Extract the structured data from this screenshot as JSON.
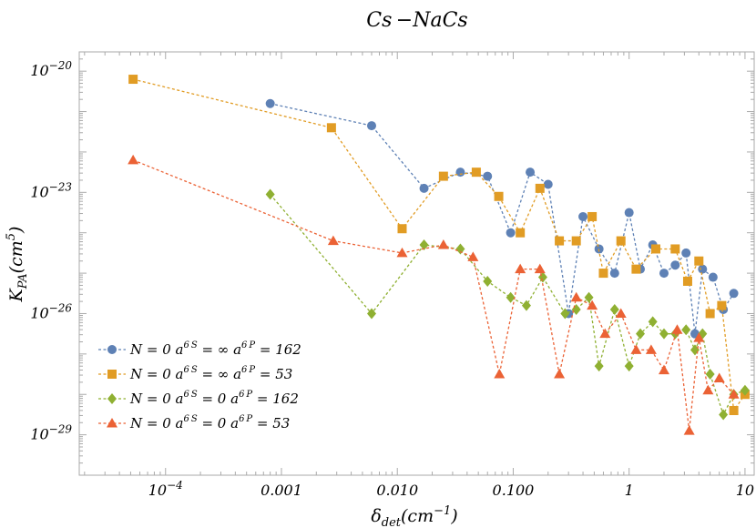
{
  "chart_data": {
    "type": "scatter",
    "title": "Cs −NaCs",
    "xlabel": {
      "main": "δ",
      "sub": "det",
      "tail": "(cm",
      "sup": "−1",
      "end": ")"
    },
    "ylabel": {
      "main": "K",
      "sub": "PA",
      "tail": "(cm",
      "sup": "5",
      "end": ")"
    },
    "x_scale": "log",
    "y_scale": "log",
    "xlim": [
      1.8e-05,
      12
    ],
    "ylim": [
      1e-30,
      3e-20
    ],
    "x_ticks": [
      {
        "value": 0.0001,
        "label": "10−4"
      },
      {
        "value": 0.001,
        "label": "0.001"
      },
      {
        "value": 0.01,
        "label": "0.010"
      },
      {
        "value": 0.1,
        "label": "0.100"
      },
      {
        "value": 1,
        "label": "1"
      },
      {
        "value": 10,
        "label": "10"
      }
    ],
    "y_ticks": [
      {
        "value": 1e-20,
        "base": "10",
        "exp": "−20"
      },
      {
        "value": 1e-23,
        "base": "10",
        "exp": "−23"
      },
      {
        "value": 1e-26,
        "base": "10",
        "exp": "−26"
      },
      {
        "value": 1e-29,
        "base": "10",
        "exp": "−29"
      }
    ],
    "grid": false,
    "legend_position": "bottom-left",
    "series": [
      {
        "name": "N = 0 a6S = ∞ a6P = 162",
        "label": {
          "a": "N = 0 a",
          "s1": "6 S",
          "b": " = ∞ a",
          "s2": "6 P",
          "c": " = 162"
        },
        "color": "#5e81b5",
        "marker": "circle",
        "x": [
          0.0008,
          0.006,
          0.017,
          0.035,
          0.06,
          0.095,
          0.14,
          0.2,
          0.3,
          0.4,
          0.55,
          0.75,
          1.0,
          1.25,
          1.6,
          2.0,
          2.5,
          3.1,
          3.7,
          4.3,
          5.3,
          6.5,
          8.0
        ],
        "y": [
          1.58e-21,
          4.47e-22,
          1.26e-23,
          3.16e-23,
          2.51e-23,
          1e-24,
          3.16e-23,
          1.58e-23,
          1e-26,
          2.51e-24,
          3.98e-25,
          1e-25,
          3.16e-24,
          1.26e-25,
          5.01e-25,
          1e-25,
          1.58e-25,
          3.16e-25,
          3.16e-27,
          1.26e-25,
          7.94e-26,
          1.26e-26,
          3.16e-26
        ]
      },
      {
        "name": "N = 0 a6S = ∞ a6P = 53",
        "label": {
          "a": "N = 0 a",
          "s1": "6 S",
          "b": " = ∞ a",
          "s2": "6 P",
          "c": " = 53"
        },
        "color": "#e19c24",
        "marker": "square",
        "x": [
          5.25e-05,
          0.0027,
          0.011,
          0.025,
          0.048,
          0.075,
          0.115,
          0.17,
          0.25,
          0.35,
          0.48,
          0.6,
          0.85,
          1.15,
          1.7,
          2.5,
          3.2,
          4.0,
          5.0,
          6.3,
          8.0,
          10.0
        ],
        "y": [
          6.31e-21,
          3.98e-22,
          1.26e-24,
          2.51e-23,
          3.16e-23,
          7.94e-24,
          1e-24,
          1.26e-23,
          6.31e-25,
          6.31e-25,
          2.51e-24,
          1e-25,
          6.31e-25,
          1.26e-25,
          3.98e-25,
          3.98e-25,
          6.31e-26,
          2e-25,
          1e-26,
          1.58e-26,
          3.98e-29,
          1e-28
        ]
      },
      {
        "name": "N = 0 a6S = 0 a6P = 162",
        "label": {
          "a": "N = 0 a",
          "s1": "6 S",
          "b": " = 0 a",
          "s2": "6 P",
          "c": " = 162"
        },
        "color": "#8fb032",
        "marker": "diamond",
        "x": [
          0.0008,
          0.006,
          0.017,
          0.035,
          0.06,
          0.095,
          0.13,
          0.18,
          0.28,
          0.35,
          0.45,
          0.55,
          0.75,
          1.0,
          1.25,
          1.6,
          2.0,
          2.5,
          3.1,
          3.7,
          4.3,
          5.0,
          6.5,
          8.0,
          10.0
        ],
        "y": [
          8.91e-24,
          1e-26,
          5.01e-25,
          3.98e-25,
          6.31e-26,
          2.51e-26,
          1.58e-26,
          7.94e-26,
          1e-26,
          1.26e-26,
          2.51e-26,
          5.01e-28,
          1.26e-26,
          5.01e-28,
          3.16e-27,
          6.31e-27,
          3.16e-27,
          3.16e-27,
          3.98e-27,
          1.26e-27,
          3.16e-27,
          3.16e-28,
          3.16e-29,
          1e-28,
          1.26e-28
        ]
      },
      {
        "name": "N = 0 a6S = 0 a6P = 53",
        "label": {
          "a": "N = 0 a",
          "s1": "6 S",
          "b": " = 0 a",
          "s2": "6 P",
          "c": " = 53"
        },
        "color": "#eb6235",
        "marker": "triangle",
        "x": [
          5.25e-05,
          0.0028,
          0.011,
          0.025,
          0.045,
          0.076,
          0.115,
          0.17,
          0.25,
          0.35,
          0.48,
          0.62,
          0.85,
          1.15,
          1.55,
          2.0,
          2.6,
          3.3,
          4.0,
          4.8,
          6.0,
          8.0
        ],
        "y": [
          6.31e-23,
          6.31e-25,
          3.16e-25,
          5.01e-25,
          2.51e-25,
          3.16e-28,
          1.26e-25,
          1.26e-25,
          3.16e-28,
          2.51e-26,
          1.58e-26,
          3.16e-27,
          1e-26,
          1.26e-27,
          1.26e-27,
          3.98e-28,
          3.98e-27,
          1.26e-29,
          2.51e-27,
          1.26e-28,
          2.51e-28,
          1e-28
        ]
      }
    ]
  }
}
